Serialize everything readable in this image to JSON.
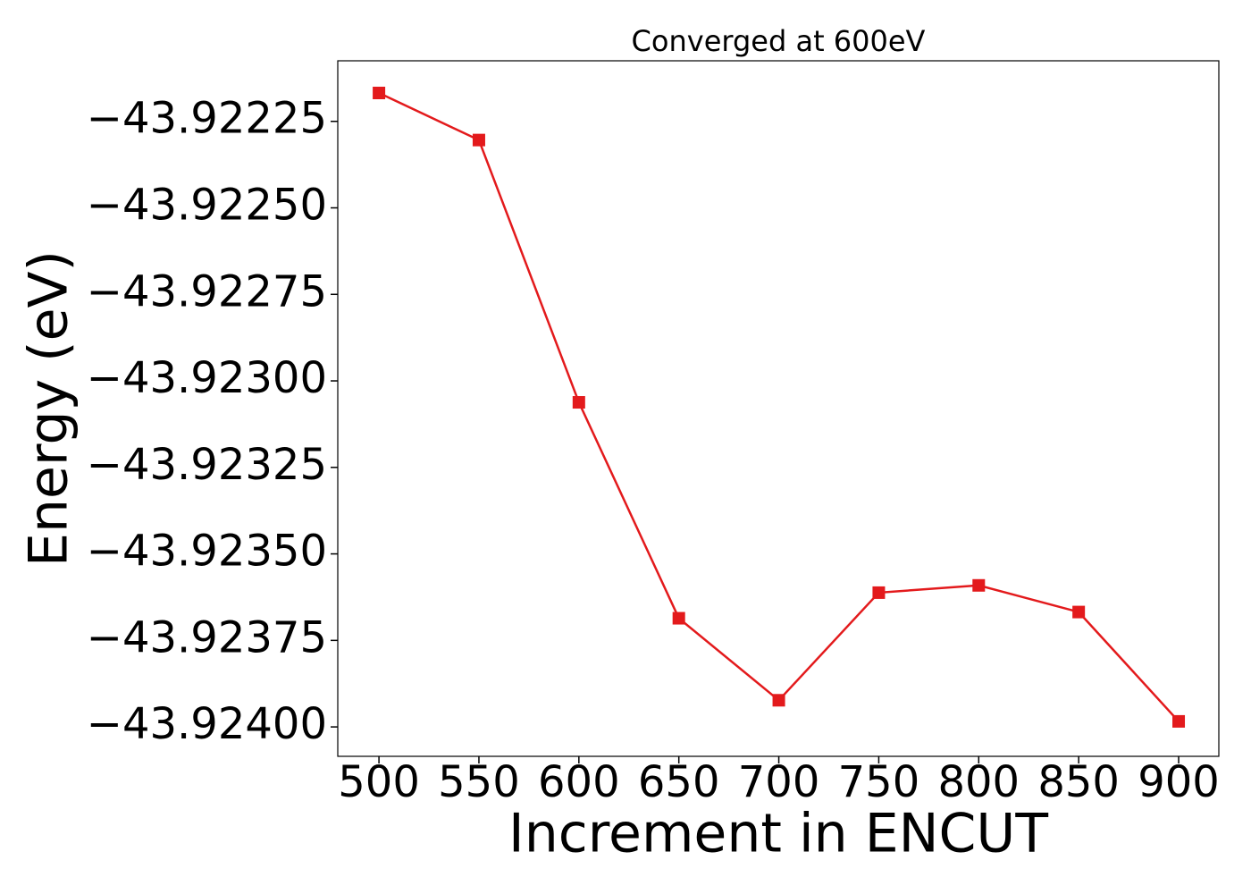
{
  "chart_data": {
    "type": "line",
    "title": "Converged at 600eV",
    "x_label": "Increment in ENCUT",
    "y_label": "Energy (eV)",
    "x": [
      500,
      550,
      600,
      650,
      700,
      750,
      800,
      850,
      900
    ],
    "series": [
      {
        "name": "Energy",
        "color": "#e31a1c",
        "marker": "square",
        "values": [
          -43.922168,
          -43.922304,
          -43.923062,
          -43.923686,
          -43.923923,
          -43.923612,
          -43.923591,
          -43.923668,
          -43.923984
        ]
      }
    ],
    "xlim": [
      479.4,
      920.1
    ],
    "ylim": [
      -43.924085,
      -43.922075
    ],
    "xticks": [
      500,
      550,
      600,
      650,
      700,
      750,
      800,
      850,
      900
    ],
    "yticks": [
      {
        "value": -43.92225,
        "label": "−43.92225"
      },
      {
        "value": -43.9225,
        "label": "−43.92250"
      },
      {
        "value": -43.92275,
        "label": "−43.92275"
      },
      {
        "value": -43.923,
        "label": "−43.92300"
      },
      {
        "value": -43.92325,
        "label": "−43.92325"
      },
      {
        "value": -43.9235,
        "label": "−43.92350"
      },
      {
        "value": -43.92375,
        "label": "−43.92375"
      },
      {
        "value": -43.924,
        "label": "−43.92400"
      }
    ],
    "grid": false
  }
}
